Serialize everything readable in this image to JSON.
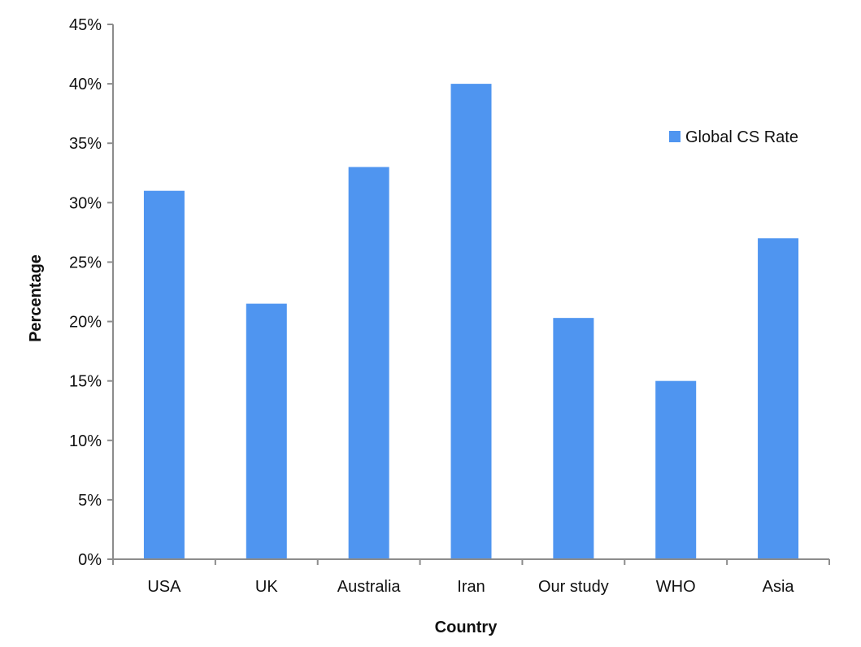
{
  "chart_data": {
    "type": "bar",
    "title": "",
    "xlabel": "Country",
    "ylabel": "Percentage",
    "ylim": [
      0,
      45
    ],
    "ytick_step": 5,
    "ytick_suffix": "%",
    "grid": false,
    "legend_position": "right",
    "categories": [
      "USA",
      "UK",
      "Australia",
      "Iran",
      "Our study",
      "WHO",
      "Asia"
    ],
    "series": [
      {
        "name": "Global CS Rate",
        "color": "#4f95f0",
        "values": [
          31,
          21.5,
          33,
          40,
          20.3,
          15,
          27
        ]
      }
    ]
  }
}
